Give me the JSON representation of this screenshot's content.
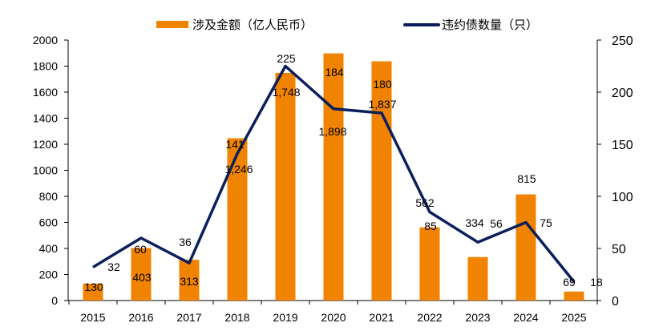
{
  "chart_data": {
    "type": "bar+line",
    "categories": [
      "2015",
      "2016",
      "2017",
      "2018",
      "2019",
      "2020",
      "2021",
      "2022",
      "2023",
      "2024",
      "2025"
    ],
    "series": [
      {
        "name": "涉及金额（亿人民币）",
        "type": "bar",
        "axis": "left",
        "color": "#F08300",
        "values": [
          130,
          403,
          313,
          1246,
          1748,
          1898,
          1837,
          562,
          334,
          815,
          69
        ],
        "labels": [
          "130",
          "403",
          "313",
          "1,246",
          "1,748",
          "1,898",
          "1,837",
          "562",
          "334",
          "815",
          "69"
        ]
      },
      {
        "name": "违约债数量（只）",
        "type": "line",
        "axis": "right",
        "color": "#0C1F5C",
        "values": [
          32,
          60,
          36,
          141,
          225,
          184,
          180,
          85,
          56,
          75,
          18
        ],
        "labels": [
          "32",
          "60",
          "36",
          "141",
          "225",
          "184",
          "180",
          "85",
          "56",
          "75",
          "18"
        ]
      }
    ],
    "y_left": {
      "lim": [
        0,
        2000
      ],
      "ticks": [
        "0",
        "200",
        "400",
        "600",
        "800",
        "1000",
        "1200",
        "1400",
        "1600",
        "1800",
        "2000"
      ]
    },
    "y_right": {
      "lim": [
        0,
        250
      ],
      "ticks": [
        "0",
        "50",
        "100",
        "150",
        "200",
        "250"
      ]
    },
    "legend": "top",
    "grid": false
  }
}
